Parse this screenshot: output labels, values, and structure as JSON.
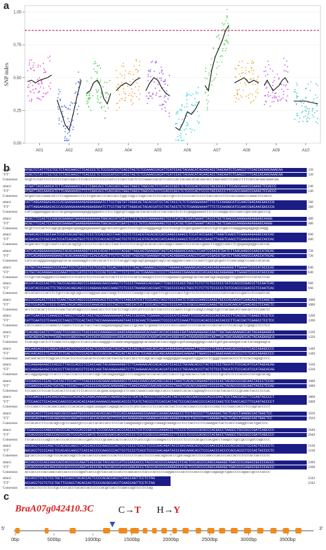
{
  "panel_a": {
    "label": "a",
    "chart_data": {
      "type": "scatter",
      "ylabel": "SNP index",
      "yticks": [
        "0.00",
        "0.25",
        "0.50",
        "0.75",
        "1.00"
      ],
      "ylim": [
        0,
        1.05
      ],
      "threshold": 0.86,
      "categories": [
        "A01",
        "A02",
        "A03",
        "A04",
        "A05",
        "A06",
        "A07",
        "A08",
        "A09",
        "A10"
      ],
      "point_colors": [
        "#e040c8",
        "#3a5fd0",
        "#35c83a",
        "#f0982a",
        "#9a3fe0",
        "#22cfe0",
        "#3ad63a",
        "#e8a030",
        "#c040e0",
        "#30c0c0"
      ],
      "series": [
        {
          "values": [
            0.47,
            0.48,
            0.46,
            0.48,
            0.49,
            0.5,
            0.52
          ]
        },
        {
          "values": [
            0.33,
            0.24,
            0.14,
            0.1,
            0.22,
            0.36,
            0.48
          ]
        },
        {
          "values": [
            0.38,
            0.4,
            0.46,
            0.48,
            0.44,
            0.34,
            0.3,
            0.38
          ]
        },
        {
          "values": [
            0.4,
            0.44,
            0.46,
            0.44,
            0.48,
            0.5
          ]
        },
        {
          "values": [
            0.4,
            0.46,
            0.5,
            0.48,
            0.42,
            0.38,
            0.36
          ]
        },
        {
          "values": [
            0.12,
            0.1,
            0.16,
            0.24,
            0.22,
            0.26,
            0.32
          ]
        },
        {
          "values": [
            0.44,
            0.4,
            0.56,
            0.66,
            0.72,
            0.78,
            0.86,
            0.9
          ]
        },
        {
          "values": [
            0.46,
            0.48,
            0.5,
            0.46,
            0.48,
            0.46
          ]
        },
        {
          "values": [
            0.44,
            0.48,
            0.44,
            0.4,
            0.42,
            0.44,
            0.48,
            0.5,
            0.46
          ]
        },
        {
          "values": [
            0.32,
            0.32,
            0.3
          ]
        }
      ]
    }
  },
  "panel_b": {
    "label": "b",
    "names": [
      "sthm1",
      "\"FT\"",
      "Consensus"
    ],
    "blocks": [
      {
        "n": 120,
        "s": "ATGCTCTATTTCCTCCTCTACCAACCTTCACCCCTCTCCCCATCCTCACCTACTCTCCAAACCACATTCATCCACTACAACATACAACACCTAACAATCTCAACCTTTCACCACAACAAACAA",
        "c": "atgctctatttcctcctctaccaaccttcacccctctccccatcctcacctactctccaaaccacattcatccactacaacatacaacacctaacaatctcaacctttcaccacaacaaacaa"
      },
      {
        "n": 240,
        "s": "ATGATTACCAAACATCTTCAGAAAACCTTCTCGACACCTCACCACCTGGCTAGCCTAGCCACTCTCCACCCGCCTCTCCCCACTCCCCTACCACCCTTCCACCAAACCCAAACTCCACCC",
        "c": "atgattaccaaacatcttcagaaaaccttctcgacacctcaccacctggctagcctagccactctccacccgcctctccccactcccctaccacccttccaccaaacccaaactccaccc"
      },
      {
        "n": 360,
        "s": "CATTAGGAAGGACACCCACGAAGAAAAAGAGGAGGAATCTTCCTGGTGTTAGGCACTACACCATCCTACTACCTCTCTCGAGGAAAATTTCTCCAAGGCATCCAACCGACAACGACCCG",
        "c": "cattaggaaggacacccacgaagaaaaagaggaggaatcttcctggtgttaggcactacaccatcctactacctctctcgaggaaaatttctccaaggcatccaaccgacaacgacccg"
      },
      {
        "n": 480,
        "s": "ACGCTTCCACTCCAGCGCGAAGATGAAGGAGAAAAATGGCACCATCGATCTTCCTGTCCAGGGAAGCTCCTCATGCTCGATGAAATTACCCTGCTCGACCCAAGGAAGAGGAGCAAGG",
        "c": "acgcttccactccagcgcgaagatgaaggagaaaaatggcaccatcgatcttcctgtccagggaagctcctcatgctcgatgaaattaccctgctcgacccaaggaagaggagcaagg"
      },
      {
        "n": 600,
        "s": "ACGACACCTCGCCAATCCATCACAGTGCCTCCCTCCACCACCTAACTCCTCTCCACGTACACACCACCAAGCCAAACCTCCATACCGAACTTAGGTCAACCTCGAGAAGAGGCCACCAC",
        "c": "acgacacctcgccaatccatcacagtgcctccctccaccacctaactcctctccacgtacacaccaccaagccaaacctccataccgaacttaggtcaacctcgagaagaggccaccac"
      },
      {
        "n": 720,
        "s": "CATCACAGGGAAAGGAAGTACACAAAAAGGTCCACCACACTTCTCTACGGTTAGCAGTGAAGGATAGTCACAGGAACCAACCTCAATCCGACGTGATCTTAACAAGCCCAACCATACAC",
        "c": "catcacagggaaaggaagtacacaaaaaggtccaccacacttctctacggttagcagtgaaggatagtcacaggaaccaacctcaatccgacgtgatcttaacaagcccaaccatacac"
      },
      {
        "n": 840,
        "s": "CCTGCTACAAGGACCCCAAATTCCTCATCCTCCTCCCACTCCACTTTCTCTTCACTCAAAGCCTCCCTTAGAAACCGAAAGCACCACAACAGCAAGAGGCTTGAAATCCCCATACCCAC",
        "c": "cctgctacaaggaccccaaattcctcatcctcctcccactccactttctcttcactcaaagcctcccttagaaaccgaaagcaccacaacagcaagaggcttgaaatccccatacccac"
      },
      {
        "n": 960,
        "s": "ACCATACCCCACTTCTGCCCACAGCAGCCCCAGGAACAACCAAGCTCTCCCCTAAAGCCACCGACTTCGCCCCCACCTGCCTCTCTTCTCCCCCCTATCCACCCCGACCCTCCAATCAC",
        "c": "accataccccacttctgcccacagcagccccaggaacaaccaagctctcccctaaagccaccgacttcgcccccacctgcctctcttctcccccctatccaccccgaccctccaatcac"
      },
      {
        "n": 1080,
        "s": "ACCTCCACACTTCCCTCAACTACATAGCCCCCAAACACCTCCTACTCTAGCCATCATTCCCACCTACCTCCCCAATCTCGCCCAAGCCAAGCTGCCCACAACATCAACACCTCCAACTC",
        "c": "acctccacacttccctcaactacatagcccccaaacacctcctactctagccatcattcccacctacctccccaatctcgcccaagccaagctgcccacaacatcaacacctccaactc"
      },
      {
        "n": 1200,
        "s": "CATTCAATCCTCAAACCCTAACCTTCCACTACCTACCAAGAAAAGAGTAACCCGCAACTCGAAACTCCCCCATCCAAATTCCCCACACCCCACCACCCTTCACCGCTCGAGCCTCCTCC",
        "c": "cattcaatcctcaaaccctaaccttccactacctaccaagaaaagagtaacccgcaactcgaaactcccccatccaaattccccacaccccaccacccttcaccgctcgagcctcctcc"
      },
      {
        "n": 1320,
        "s": "TCACAGCCACTCTTCAACTCCCAGCCCTCACCCACCAAGGGCCCAAACAAGAGGGAGCACAAATACCACCAGGCCGATAAAGAGGAGCCAATTGATGACAAAGACCACTACAAGAAGCA",
        "c": "tcacagccactcttcaactcccagccctcacccaccaagggcccaaacaagagggagcacaaataccaccaggccgataaagaggagccaattgatgacaaagaccactacaagaagca"
      },
      {
        "n": 1440,
        "s": "AACAACACCCTCAGCATCTCACTCCTCCCACACTCCCACCACTACCACTACCACCTCCAGCACCAGCAAGGAGGACAAGAATTGGACCCTCGGGCAAACACCCCTCTCACCAGAGCCCC",
        "c": "aacaacaccctcagcatctcactcctcccacactcccaccactaccactaccacctccagcaccagcaaggaggacaagaattggaccctcgggcaaacacccctctcaccagagcccc"
      },
      {
        "n": 1560,
        "s": "ACCAGGAGAAGCCCACCCTTACCCACCCTCCACCAGCTACAAGAAAGGTCTTCAAGAACACCACACCATCCACCCTGCAACACCCTACTCTCCCTGCATCTCCCACATCCATAGCACAG",
        "c": "accaggagaagcccacccttacccaccctccaccagctacaagaaaggtcttcaagaacaccacaccatccaccctgcaacaccctactctccctgcatctcccacatccatagcacag"
      },
      {
        "n": 1680,
        "s": "TCCAACCCTCCACTCATACTTCCACTTTCACCCCCACGAACAAGAAGCCTCAACCAAACCAACAGCCACCCTAAATCACACCAGAAGTCCCCCACTACACCCCCGCAACTACCCTCCAC",
        "c": "tccaaccctccactcatacttccactttcacccccacgaacaagaagcctcaaccaaaccaacagccaccctaaatcacaccagaagtcccccactacacccccgcaactaccctccac"
      },
      {
        "n": 1800,
        "s": "CTCCAACCTCCACAACCAACCCCACACACCAGACAAAGACCAGAGCACCCCTCATCTACCCCTCCACCACTACTCCCACCAACCCCCACCCCAACTCCTAACCACCTTCCAGTACCCCT",
        "c": "ctccaacctccacaaccaaccccacacaccagacaaagaccagagcacccctcatctacccctccaccactactcccaccaacccccaccccaactcctaaccaccttccagtacccct"
      },
      {
        "n": 1920,
        "s": "CCCACACCTTCCACAGCCGCCCAAATGCCCCACCACACCACCTCCCACCAAGAAAGCCGAAGCCAAAGCAAAGCCCTCCTACCCCTTCAAAGACTACTCACCTAAGGCCACTGACTCC",
        "c": "cccacaccttccacagccgcccaaatgccccaccacaccacctcccaccaagaaagccgaagccaaagcaaagccctcctaccccttcaaagactactcacctaaggccactgactcc"
      },
      {
        "n": 2040,
        "s": "TTCACCCCCCAGCCCACCCCACTCCCACCCGATCTCCCGCAACCACCCACCCCTCATCCGCCCCAAGACCCTTCCCCTCCCCCACGCCCACGACCTAAGCCTGCCGCCCGATCAGCCCC",
        "c": "ttcaccccccagcccaccccactcccacccgatctcccgcaaccacccacccctcatccgccccaagacccttcccctcccccacgcccacgacctaagcctgccgcccgatcagcccc"
      },
      {
        "n": 2160,
        "s": "GGCACCTCCCCAGCTCCACACCAGCCTCACCACCCCCAACCCCACTCCTCCCCTCACCTCCCCAACAGATACCCGACAAGCACCTCCCAACCCACCCCACCACCCTCCCACTACCCCTC",
        "c": "ggcacctccccagctccacaccagcctcaccacccccaaccccactcctcccctcacctccccaacagatacccgacaagcacctcccaacccaccccaccaccctcccactacccctc"
      },
      {
        "n": 2280,
        "s": "ACCACCCCCACCAACCACCACCCCCCAGATCACCCGCTACCACCCATCCCAACACCCTACCCACCCCCAAGACCCCACTCCCACCCCAGCCAGAAGCTGACCCCCAGACCGCCCCACCC",
        "c": "accacccccaccaaccaccaccccccagatcacccgctaccacccatcccaacaccctacccacccccaagaccccactcccaccccagccagaagctgacccccagaccgccccaccc"
      },
      {
        "n": 2342,
        "s": "ACCACCTCCTCTCCTGCTTCCACCTACACCACTCCCCACGCCACCTCAACCAGTTCCTCTAG",
        "c": "accacctcctctcctgcttccacctacaccactccccacgccacctcaaccagttcctctag"
      }
    ]
  },
  "panel_c": {
    "label": "c",
    "gene": "BraA07g042410.3C",
    "mut_nt_from": "C",
    "mut_nt_to": "T",
    "mut_aa_from": "H",
    "mut_aa_to": "Y",
    "arrow": "→",
    "ticks": [
      "0bp",
      "500bp",
      "1000bp",
      "1500bp",
      "2000bp",
      "2500bp",
      "3000bp",
      "3500bp"
    ],
    "five_prime": "5'",
    "three_prime": "3'",
    "colors": {
      "exon": "#f08a1c",
      "marker": "#3050c8",
      "accent": "#d32020",
      "text_dark": "#111111"
    }
  }
}
